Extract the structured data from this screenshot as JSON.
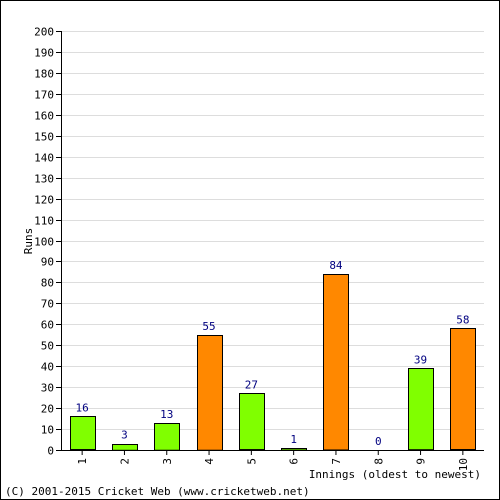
{
  "footer": "(C) 2001-2015 Cricket Web (www.cricketweb.net)",
  "colors": {
    "green": "#80ff00",
    "orange": "#ff8800",
    "bar_stroke": "#000000",
    "grid": "#dddddd",
    "value_label": "#000080"
  },
  "chart_data": {
    "type": "bar",
    "xlabel": "Innings (oldest to newest)",
    "ylabel": "Runs",
    "ylim": [
      0,
      200
    ],
    "ytick_step": 10,
    "grid": true,
    "categories": [
      "1",
      "2",
      "3",
      "4",
      "5",
      "6",
      "7",
      "8",
      "9",
      "10"
    ],
    "values": [
      16,
      3,
      13,
      55,
      27,
      1,
      84,
      0,
      39,
      58
    ],
    "bar_colors": [
      "green",
      "green",
      "green",
      "orange",
      "green",
      "green",
      "orange",
      "green",
      "green",
      "orange"
    ]
  }
}
